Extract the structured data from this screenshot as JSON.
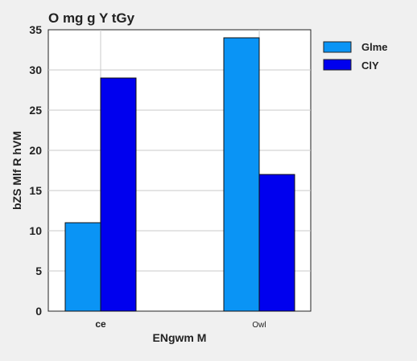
{
  "chart_data": {
    "type": "bar",
    "title": "O mg   g Y tGy",
    "xlabel": "ENgwm M",
    "ylabel": "bZS Mlf R hVM",
    "categories": [
      "ce",
      "Owl"
    ],
    "ylim": [
      0,
      35
    ],
    "yticks": [
      0,
      5,
      10,
      15,
      20,
      25,
      30,
      35
    ],
    "grid": true,
    "legend_position": "right",
    "series": [
      {
        "name": "Glme",
        "color": "#0a94f5",
        "values": [
          11,
          34
        ]
      },
      {
        "name": "ClY",
        "color": "#0000ee",
        "values": [
          29,
          17
        ]
      }
    ]
  }
}
